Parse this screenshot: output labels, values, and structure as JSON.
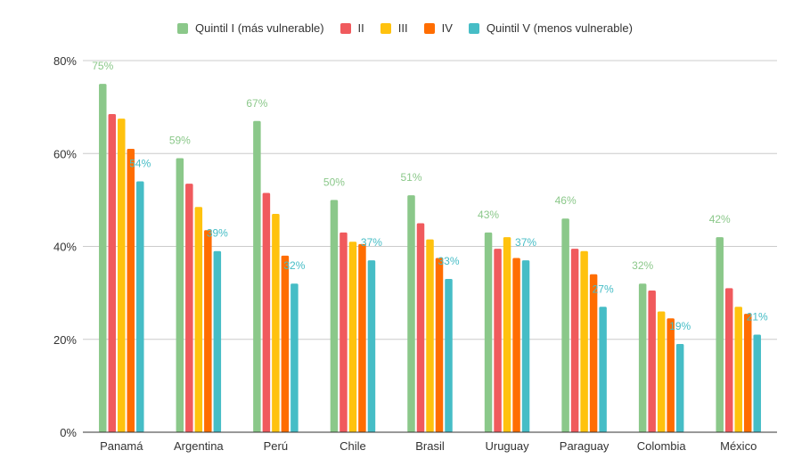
{
  "chart_data": {
    "type": "bar",
    "categories": [
      "Panamá",
      "Argentina",
      "Perú",
      "Chile",
      "Brasil",
      "Uruguay",
      "Paraguay",
      "Colombia",
      "México"
    ],
    "series": [
      {
        "name": "Quintil I (más vulnerable)",
        "color": "#8bc88a",
        "values": [
          75,
          59,
          67,
          50,
          51,
          43,
          46,
          32,
          42
        ]
      },
      {
        "name": "II",
        "color": "#f05a5d",
        "values": [
          68.5,
          53.5,
          51.5,
          43,
          45,
          39.5,
          39.5,
          30.5,
          31
        ]
      },
      {
        "name": "III",
        "color": "#ffc20e",
        "values": [
          67.5,
          48.5,
          47,
          41,
          41.5,
          42,
          39,
          26,
          27
        ]
      },
      {
        "name": "IV",
        "color": "#ff6d01",
        "values": [
          61,
          43.5,
          38,
          40.5,
          37.5,
          37.5,
          34,
          24.5,
          25.5
        ]
      },
      {
        "name": "Quintil V (menos vulnerable)",
        "color": "#46bdc6",
        "values": [
          54,
          39,
          32,
          37,
          33,
          37,
          27,
          19,
          21
        ]
      }
    ],
    "data_labels": {
      "series_indices": [
        0,
        4
      ],
      "first_series_values": [
        "75%",
        "59%",
        "67%",
        "50%",
        "51%",
        "43%",
        "46%",
        "32%",
        "42%"
      ],
      "last_series_values": [
        "54%",
        "39%",
        "32%",
        "37%",
        "33%",
        "37%",
        "27%",
        "19%",
        "21%"
      ]
    },
    "y_ticks": [
      "0%",
      "20%",
      "40%",
      "60%",
      "80%"
    ],
    "y_tick_values": [
      0,
      20,
      40,
      60,
      80
    ],
    "ylim": [
      0,
      80
    ],
    "grid": true,
    "legend_position": "top-center",
    "axis_color": "#333333",
    "grid_color": "#cccccc"
  }
}
